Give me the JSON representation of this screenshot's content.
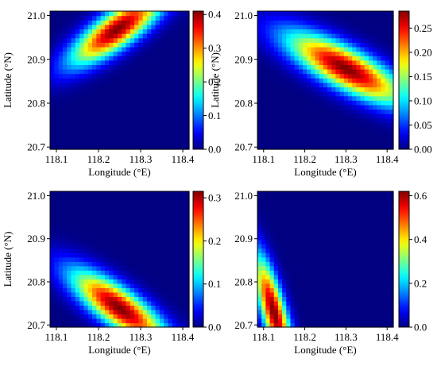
{
  "chart_data": [
    {
      "type": "heatmap",
      "x": {
        "label": "Longitude (°E)",
        "range": [
          118.085,
          118.415
        ],
        "ticks": [
          118.1,
          118.2,
          118.3,
          118.4
        ],
        "tick_labels": [
          "118.1",
          "118.2",
          "118.3",
          "118.4"
        ]
      },
      "y": {
        "label": "Latitude (°N)",
        "range": [
          20.695,
          21.01
        ],
        "ticks": [
          20.7,
          20.8,
          20.9,
          21.0
        ],
        "tick_labels": [
          "20.7",
          "20.8",
          "20.9",
          "21.0"
        ]
      },
      "colorbar": {
        "min": 0,
        "max": 0.41,
        "ticks": [
          0,
          0.1,
          0.2,
          0.3,
          0.4
        ],
        "tick_labels": [
          "0.0",
          "0.1",
          "0.2",
          "0.3",
          "0.4"
        ]
      },
      "peak": {
        "lon": 118.245,
        "lat": 20.97,
        "value": 0.41
      },
      "orientation": "band rising from lower-left to upper-right"
    },
    {
      "type": "heatmap",
      "x": {
        "label": "Longitude (°E)",
        "range": [
          118.085,
          118.415
        ],
        "ticks": [
          118.1,
          118.2,
          118.3,
          118.4
        ],
        "tick_labels": [
          "118.1",
          "118.2",
          "118.3",
          "118.4"
        ]
      },
      "y": {
        "label": "Latitude (°N)",
        "range": [
          20.695,
          21.01
        ],
        "ticks": [
          20.7,
          20.8,
          20.9,
          21.0
        ],
        "tick_labels": [
          "20.7",
          "20.8",
          "20.9",
          "21.0"
        ]
      },
      "colorbar": {
        "min": 0,
        "max": 0.285,
        "ticks": [
          0,
          0.05,
          0.1,
          0.15,
          0.2,
          0.25
        ],
        "tick_labels": [
          "0.00",
          "0.05",
          "0.10",
          "0.15",
          "0.20",
          "0.25"
        ]
      },
      "peak": {
        "lon": 118.3,
        "lat": 20.88,
        "value": 0.285
      },
      "orientation": "band falling from upper-left to lower-right"
    },
    {
      "type": "heatmap",
      "x": {
        "label": "Longitude (°E)",
        "range": [
          118.085,
          118.415
        ],
        "ticks": [
          118.1,
          118.2,
          118.3,
          118.4
        ],
        "tick_labels": [
          "118.1",
          "118.2",
          "118.3",
          "118.4"
        ]
      },
      "y": {
        "label": "Latitude (°N)",
        "range": [
          20.695,
          21.01
        ],
        "ticks": [
          20.7,
          20.8,
          20.9,
          21.0
        ],
        "tick_labels": [
          "20.7",
          "20.8",
          "20.9",
          "21.0"
        ]
      },
      "colorbar": {
        "min": 0,
        "max": 0.315,
        "ticks": [
          0,
          0.1,
          0.2,
          0.3
        ],
        "tick_labels": [
          "0.0",
          "0.1",
          "0.2",
          "0.3"
        ]
      },
      "peak": {
        "lon": 118.25,
        "lat": 20.74,
        "value": 0.315
      },
      "orientation": "band falling from upper-left to lower-right"
    },
    {
      "type": "heatmap",
      "x": {
        "label": "Longitude (°E)",
        "range": [
          118.085,
          118.415
        ],
        "ticks": [
          118.1,
          118.2,
          118.3,
          118.4
        ],
        "tick_labels": [
          "118.1",
          "118.2",
          "118.3",
          "118.4"
        ]
      },
      "y": {
        "label": "",
        "range": [
          20.695,
          21.01
        ],
        "ticks": [
          20.7,
          20.8,
          20.9,
          21.0
        ],
        "tick_labels": [
          "20.7",
          "20.8",
          "20.9",
          "21.0"
        ]
      },
      "colorbar": {
        "min": 0,
        "max": 0.62,
        "ticks": [
          0,
          0.2,
          0.4,
          0.6
        ],
        "tick_labels": [
          "0.0",
          "0.2",
          "0.4",
          "0.6"
        ]
      },
      "peak": {
        "lon": 118.125,
        "lat": 20.73,
        "value": 0.62
      },
      "orientation": "narrow band near left edge, steep"
    }
  ]
}
